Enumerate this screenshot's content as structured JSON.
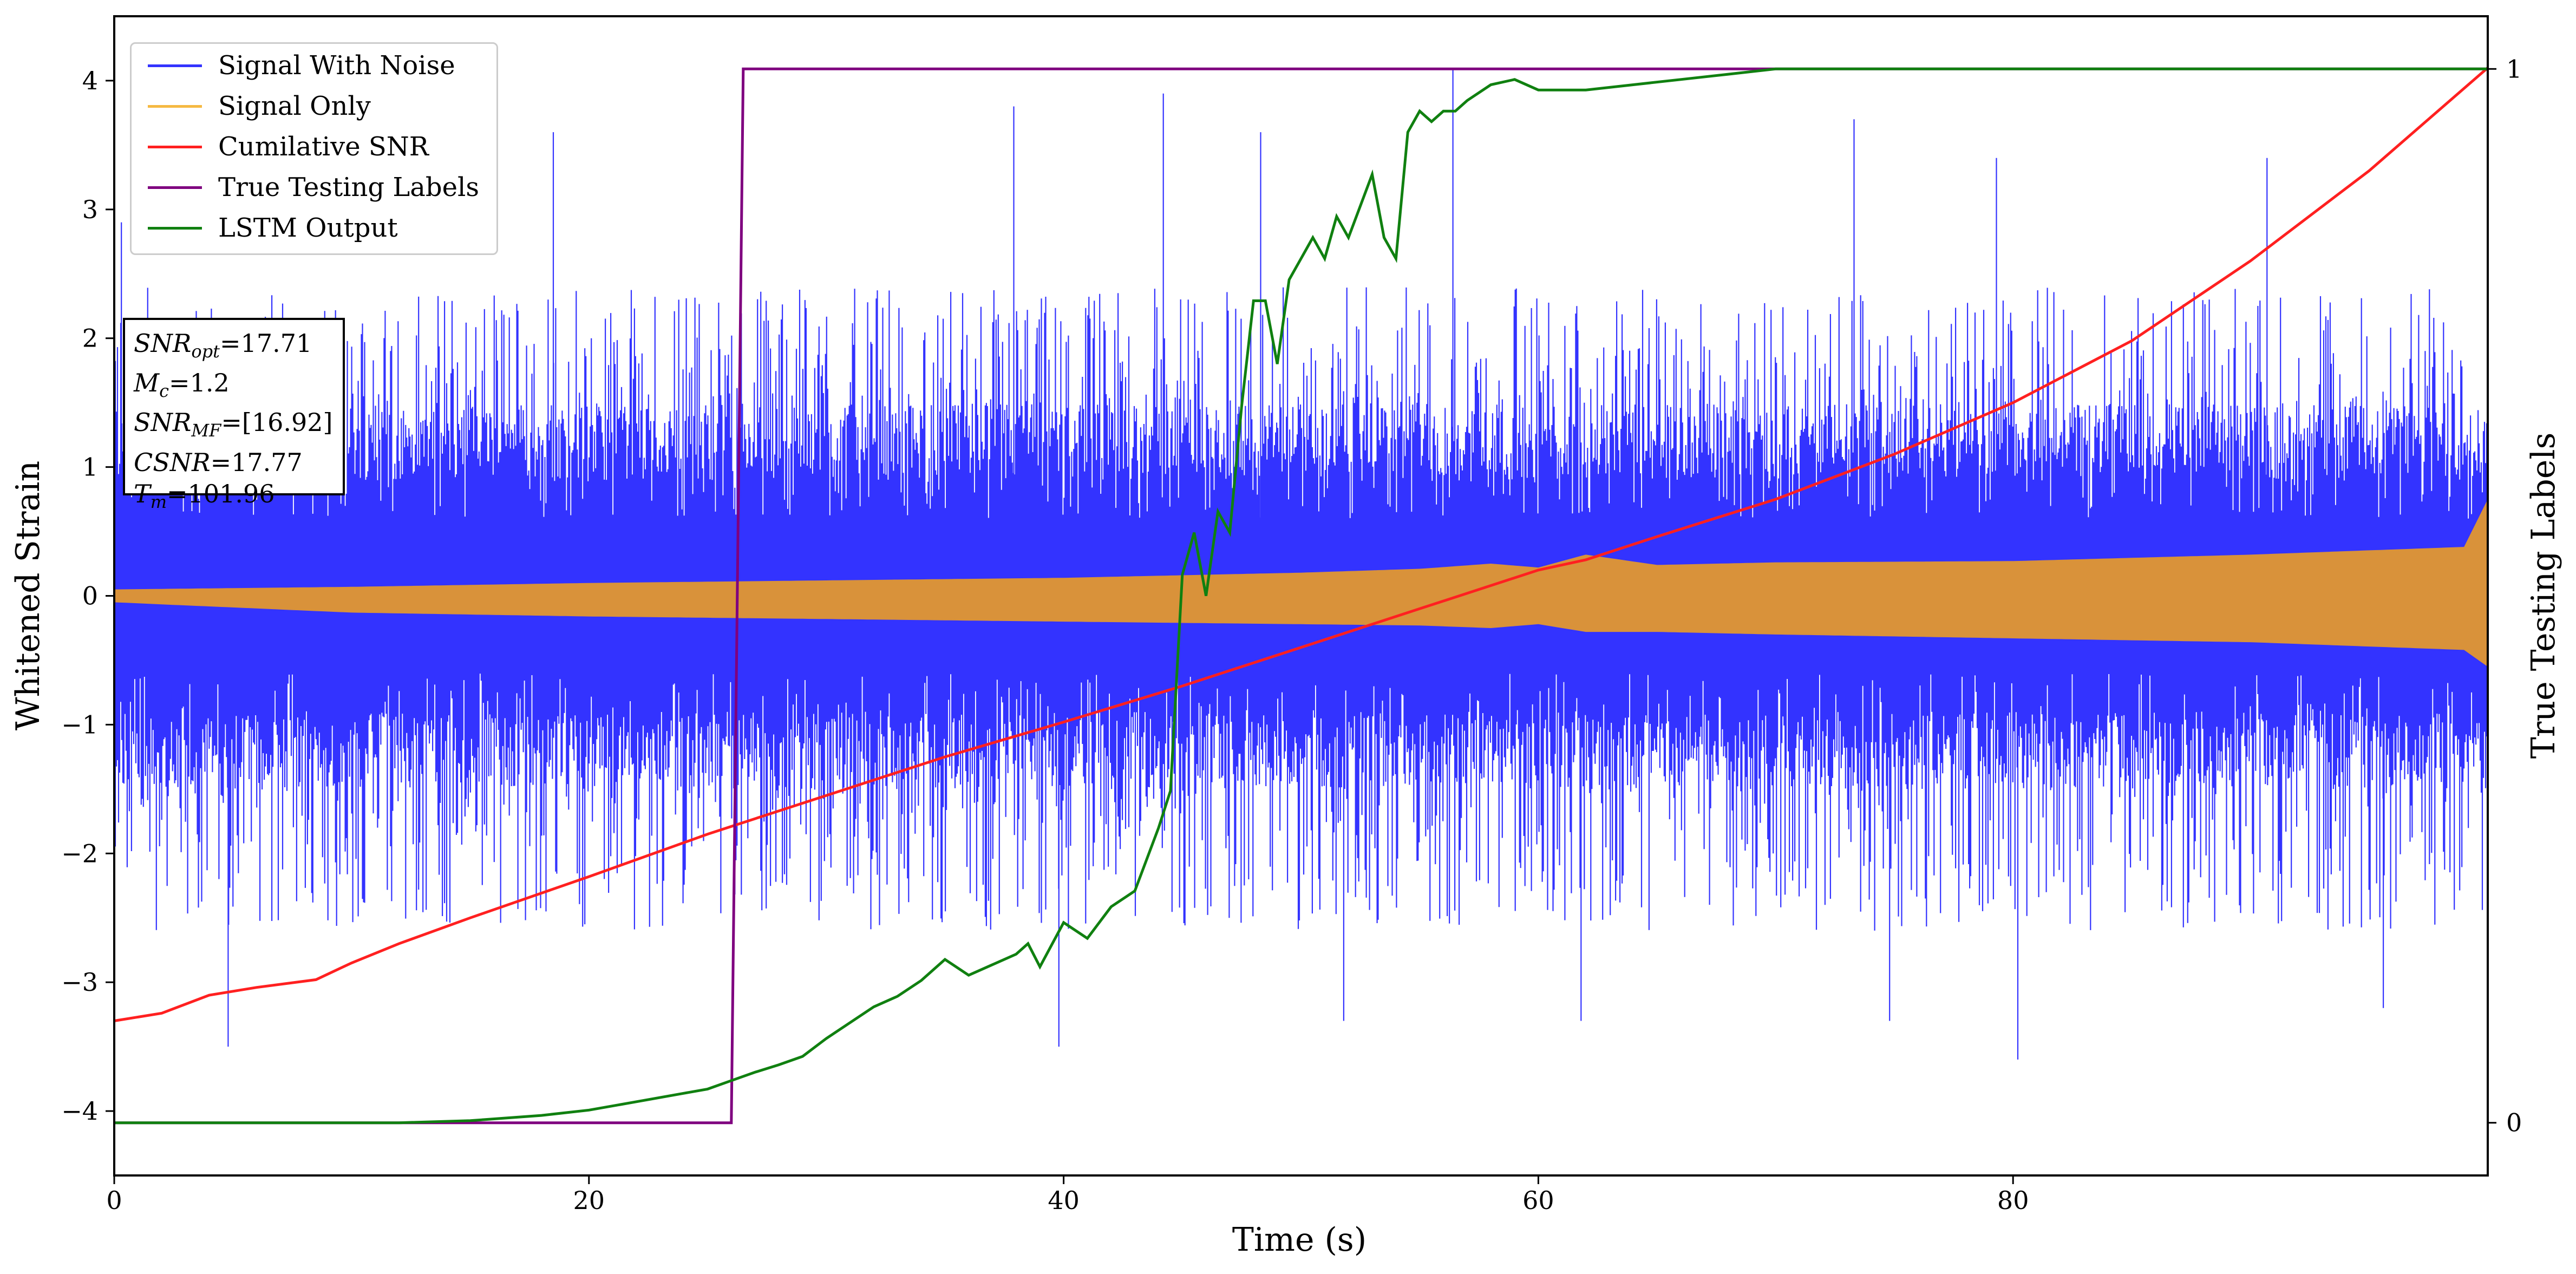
{
  "colors": {
    "noise": "#3333ff",
    "signal": "#d9923a",
    "snr": "#ff2020",
    "labels": "#7f007f",
    "lstm": "#108010"
  },
  "chart_data": {
    "type": "line",
    "title": "",
    "xlabel": "Time (s)",
    "ylabel": "Whitened Strain",
    "ylabel_right": "True Testing Labels",
    "xlim": [
      0,
      100
    ],
    "ylim": [
      -4.5,
      4.5
    ],
    "ylim_right": [
      -0.05,
      1.05
    ],
    "xticks": [
      0,
      20,
      40,
      60,
      80
    ],
    "yticks": [
      -4,
      -3,
      -2,
      -1,
      0,
      1,
      2,
      3,
      4
    ],
    "yticks_right": [
      0,
      1
    ],
    "legend_position": "top-left",
    "series": [
      {
        "name": "Signal With Noise",
        "axis": "left",
        "color_key": "noise",
        "description": "dense noise band roughly between -2.5 and 2.5 with spikes up to about 4.1 and down to -3.7",
        "band_low": -2.4,
        "band_high": 2.4,
        "band_core": 0.9,
        "spikes": [
          [
            0.3,
            2.9
          ],
          [
            4.8,
            -3.5
          ],
          [
            18.5,
            3.6
          ],
          [
            20.1,
            2.0
          ],
          [
            37.9,
            3.8
          ],
          [
            39.8,
            -3.5
          ],
          [
            44.2,
            3.9
          ],
          [
            48.3,
            3.6
          ],
          [
            51.8,
            -3.3
          ],
          [
            56.4,
            4.1
          ],
          [
            61.8,
            -3.3
          ],
          [
            73.3,
            3.7
          ],
          [
            74.8,
            -3.3
          ],
          [
            79.3,
            3.4
          ],
          [
            80.2,
            -3.6
          ],
          [
            90.7,
            3.4
          ],
          [
            95.6,
            -3.2
          ]
        ]
      },
      {
        "name": "Signal Only",
        "axis": "left",
        "color_key": "signal",
        "description": "chirp-like band with growing amplitude",
        "x": [
          0,
          10,
          20,
          30,
          40,
          50,
          55,
          58,
          60,
          62,
          65,
          70,
          80,
          90,
          99,
          100
        ],
        "amp": [
          0.05,
          0.1,
          0.13,
          0.15,
          0.17,
          0.2,
          0.22,
          0.25,
          0.22,
          0.3,
          0.26,
          0.28,
          0.3,
          0.34,
          0.4,
          0.65
        ],
        "center": [
          0.0,
          -0.03,
          -0.03,
          -0.03,
          -0.03,
          -0.02,
          -0.01,
          0.0,
          0.0,
          0.02,
          -0.02,
          -0.02,
          -0.03,
          -0.02,
          -0.02,
          0.1
        ]
      },
      {
        "name": "Cumilative SNR",
        "axis": "left",
        "color_key": "snr",
        "x": [
          0,
          2,
          4,
          6,
          8.5,
          10,
          12,
          15,
          20,
          25,
          30,
          35,
          40,
          45,
          50,
          55,
          60,
          62,
          65,
          70,
          75,
          80,
          85,
          90,
          95,
          100
        ],
        "y": [
          -3.3,
          -3.24,
          -3.1,
          -3.04,
          -2.98,
          -2.85,
          -2.7,
          -2.5,
          -2.18,
          -1.85,
          -1.55,
          -1.25,
          -0.98,
          -0.7,
          -0.4,
          -0.1,
          0.2,
          0.28,
          0.46,
          0.75,
          1.1,
          1.5,
          1.98,
          2.6,
          3.3,
          4.1
        ]
      },
      {
        "name": "True Testing Labels",
        "axis": "right",
        "color_key": "labels",
        "x": [
          0,
          26.0,
          26.5,
          100
        ],
        "y": [
          0,
          0,
          1,
          1
        ]
      },
      {
        "name": "LSTM Output",
        "axis": "right",
        "color_key": "lstm",
        "x": [
          0,
          12,
          15,
          18,
          20,
          22,
          24,
          25,
          26,
          27,
          28,
          29,
          30,
          31,
          32,
          33,
          34,
          35,
          36,
          37,
          38,
          38.5,
          39,
          40,
          41,
          42,
          43,
          44,
          44.5,
          45,
          45.5,
          46,
          46.5,
          47,
          47.5,
          48,
          48.5,
          49,
          49.5,
          50,
          50.5,
          51,
          51.5,
          52,
          53,
          53.5,
          54,
          54.5,
          55,
          55.5,
          56,
          56.5,
          57,
          58,
          59,
          60,
          62,
          64,
          66,
          68,
          70,
          75,
          80,
          90,
          100
        ],
        "y": [
          0,
          0,
          0.002,
          0.007,
          0.012,
          0.02,
          0.028,
          0.032,
          0.04,
          0.048,
          0.055,
          0.063,
          0.08,
          0.095,
          0.11,
          0.12,
          0.135,
          0.155,
          0.14,
          0.15,
          0.16,
          0.17,
          0.148,
          0.19,
          0.175,
          0.205,
          0.22,
          0.28,
          0.315,
          0.52,
          0.56,
          0.5,
          0.58,
          0.56,
          0.68,
          0.78,
          0.78,
          0.72,
          0.8,
          0.82,
          0.84,
          0.82,
          0.86,
          0.84,
          0.9,
          0.84,
          0.82,
          0.94,
          0.96,
          0.95,
          0.96,
          0.96,
          0.97,
          0.985,
          0.99,
          0.98,
          0.98,
          0.985,
          0.99,
          0.995,
          1,
          1,
          1,
          1,
          1
        ]
      }
    ]
  },
  "infobox": {
    "snr_opt_label": "SNR",
    "snr_opt_sub": "opt",
    "snr_opt_value": "=17.71",
    "mc_label": "M",
    "mc_sub": "c",
    "mc_value": "=1.2",
    "snr_mf_label": "SNR",
    "snr_mf_sub": "MF",
    "snr_mf_value": "=[16.92]",
    "csnr_label": "CSNR",
    "csnr_value": "=17.77",
    "tm_label": "T",
    "tm_sub": "m",
    "tm_value": "=101.96"
  },
  "legend": {
    "items": [
      {
        "label": "Signal With Noise",
        "color_key": "noise"
      },
      {
        "label": "Signal Only",
        "color_key": "signal"
      },
      {
        "label": "Cumilative SNR",
        "color_key": "snr"
      },
      {
        "label": "True Testing Labels",
        "color_key": "labels"
      },
      {
        "label": "LSTM Output",
        "color_key": "lstm"
      }
    ]
  }
}
